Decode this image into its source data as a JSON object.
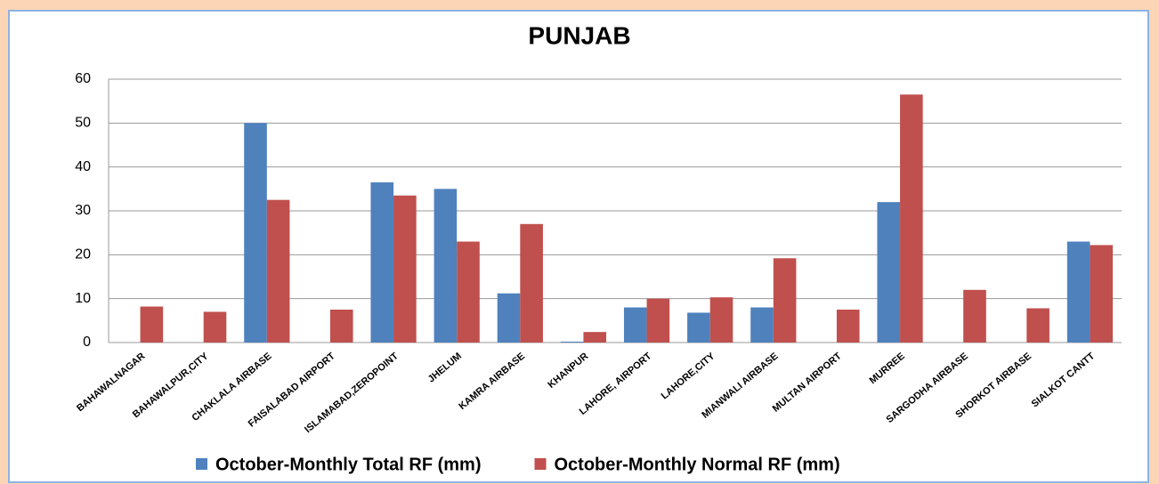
{
  "chart_data": {
    "type": "bar",
    "title": "PUNJAB",
    "categories": [
      "BAHAWALNAGAR",
      "BAHAWALPUR,CITY",
      "CHAKLALA AIRBASE",
      "FAISALABAD AIRPORT",
      "ISLAMABAD,ZEROPOINT",
      "JHELUM",
      "KAMRA AIRBASE",
      "KHANPUR",
      "LAHORE, AIRPORT",
      "LAHORE,CITY",
      "MIANWALI AIRBASE",
      "MULTAN AIRPORT",
      "MURREE",
      "SARGODHA AIRBASE",
      "SHORKOT AIRBASE",
      "SIALKOT CANTT"
    ],
    "series": [
      {
        "name": "October-Monthly Total RF (mm)",
        "color": "#4f81bd",
        "values": [
          0,
          0,
          50,
          0,
          36.5,
          35,
          11.2,
          0.2,
          8,
          6.8,
          8,
          0,
          32,
          0,
          0,
          23
        ]
      },
      {
        "name": "October-Monthly Normal RF (mm)",
        "color": "#c0504d",
        "values": [
          8.2,
          7,
          32.5,
          7.5,
          33.5,
          23,
          27,
          2.4,
          10,
          10.3,
          19.2,
          7.5,
          56.5,
          12,
          7.8,
          22.2
        ]
      }
    ],
    "ylim": [
      0,
      60
    ],
    "yticks": [
      0,
      10,
      20,
      30,
      40,
      50,
      60
    ],
    "grid": true,
    "legend": "bottom"
  }
}
